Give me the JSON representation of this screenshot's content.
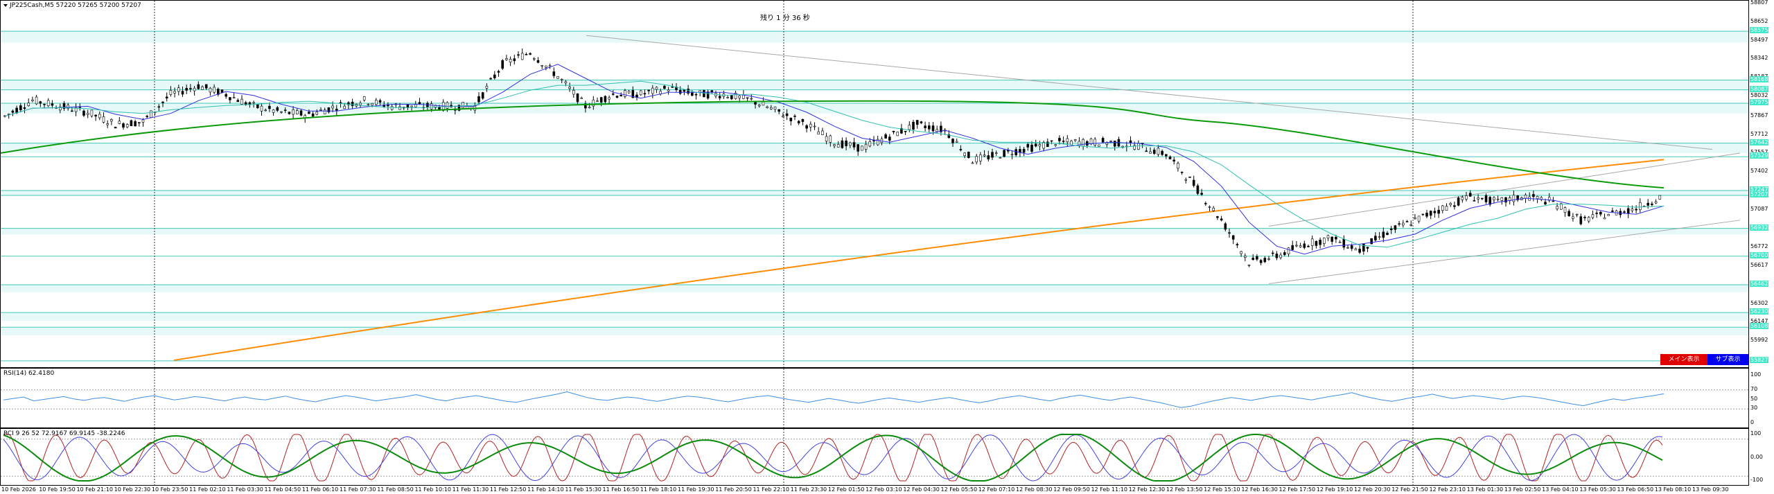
{
  "main": {
    "title": "JP225Cash,M5  57220 57265 57200 57207",
    "timer": "残り 1 分 36 秒",
    "y_ticks": [
      "58807",
      "58652",
      "58497",
      "58342",
      "58187",
      "58032",
      "57867",
      "57712",
      "57557",
      "57402",
      "57247",
      "57087",
      "56932",
      "56772",
      "56617",
      "56462",
      "56302",
      "56147",
      "55992",
      "55832"
    ],
    "tags": [
      "58575",
      "58168",
      "58087",
      "57975",
      "57642",
      "57529",
      "57247",
      "57207",
      "56932",
      "56700",
      "56462",
      "56230",
      "56108",
      "55827"
    ],
    "buttons": {
      "main": "メイン表示",
      "sub": "サブ表示"
    }
  },
  "rsi": {
    "title": "RSI(14) 62.4180",
    "y_ticks": [
      "100",
      "70",
      "50",
      "30",
      "0"
    ],
    "values": [
      49,
      52,
      55,
      47,
      50,
      53,
      56,
      51,
      48,
      52,
      54,
      50,
      46,
      51,
      55,
      58,
      53,
      49,
      52,
      56,
      54,
      50,
      47,
      52,
      55,
      51,
      49,
      53,
      57,
      52,
      48,
      45,
      50,
      54,
      58,
      55,
      51,
      47,
      50,
      53,
      56,
      60,
      55,
      50,
      47,
      52,
      55,
      58,
      54,
      50,
      46,
      44,
      49,
      53,
      57,
      61,
      66,
      60,
      54,
      50,
      48,
      52,
      55,
      53,
      49,
      46,
      50,
      54,
      57,
      55,
      52,
      48,
      45,
      49,
      53,
      56,
      58,
      54,
      50,
      47,
      44,
      48,
      52,
      49,
      45,
      42,
      46,
      50,
      53,
      50,
      47,
      44,
      48,
      51,
      54,
      50,
      46,
      43,
      47,
      52,
      55,
      58,
      54,
      50,
      47,
      52,
      56,
      59,
      55,
      51,
      48,
      52,
      55,
      51,
      47,
      43,
      38,
      33,
      36,
      41,
      46,
      50,
      54,
      51,
      48,
      52,
      56,
      58,
      55,
      52,
      49,
      53,
      57,
      60,
      64,
      58,
      53,
      49,
      46,
      50,
      54,
      57,
      61,
      56,
      52,
      55,
      58,
      56,
      53,
      50,
      54,
      57,
      55,
      52,
      48,
      44,
      40,
      37,
      42,
      47,
      51,
      48,
      52,
      55,
      58,
      62
    ]
  },
  "stoch": {
    "title": "RCI 9 26 52  72.9167 69.9145 -38.2246",
    "y_ticks": [
      "100",
      "0.00",
      "-100"
    ]
  },
  "time_labels": [
    "10 Feb 2026",
    "10 Feb 19:50",
    "10 Feb 21:10",
    "10 Feb 22:30",
    "10 Feb 23:50",
    "11 Feb 02:10",
    "11 Feb 03:30",
    "11 Feb 04:50",
    "11 Feb 06:10",
    "11 Feb 07:30",
    "11 Feb 08:50",
    "11 Feb 10:10",
    "11 Feb 11:30",
    "11 Feb 12:50",
    "11 Feb 14:10",
    "11 Feb 15:30",
    "11 Feb 16:50",
    "11 Feb 18:10",
    "11 Feb 19:30",
    "11 Feb 20:50",
    "11 Feb 22:10",
    "11 Feb 23:30",
    "12 Feb 01:50",
    "12 Feb 03:10",
    "12 Feb 04:30",
    "12 Feb 05:50",
    "12 Feb 07:10",
    "12 Feb 08:30",
    "12 Feb 09:50",
    "12 Feb 11:10",
    "12 Feb 12:30",
    "12 Feb 13:50",
    "12 Feb 15:10",
    "12 Feb 16:30",
    "12 Feb 17:50",
    "12 Feb 19:10",
    "12 Feb 20:30",
    "12 Feb 21:50",
    "12 Feb 23:10",
    "13 Feb 01:30",
    "13 Feb 02:50",
    "13 Feb 04:10",
    "13 Feb 05:30",
    "13 Feb 06:50",
    "13 Feb 08:10",
    "13 Feb 09:30"
  ],
  "chart_data": {
    "type": "line",
    "symbol": "JP225Cash,M5",
    "ohlc_last": {
      "open": 57220,
      "high": 57265,
      "low": 57200,
      "close": 57207
    },
    "ylim": [
      55832,
      58807
    ],
    "approx_close_path": [
      57867,
      58000,
      57950,
      57900,
      57800,
      57820,
      58050,
      58120,
      58050,
      57950,
      57900,
      57880,
      57950,
      58000,
      57950,
      57950,
      57950,
      57950,
      58300,
      58400,
      58200,
      57950,
      58050,
      58050,
      58100,
      58050,
      58050,
      58000,
      57900,
      57800,
      57650,
      57600,
      57700,
      57800,
      57750,
      57500,
      57550,
      57600,
      57650,
      57650,
      57650,
      57620,
      57550,
      57300,
      57000,
      56650,
      56700,
      56800,
      56850,
      56750,
      56900,
      57000,
      57100,
      57200,
      57150,
      57200,
      57150,
      57000,
      57050,
      57100,
      57207
    ]
  }
}
